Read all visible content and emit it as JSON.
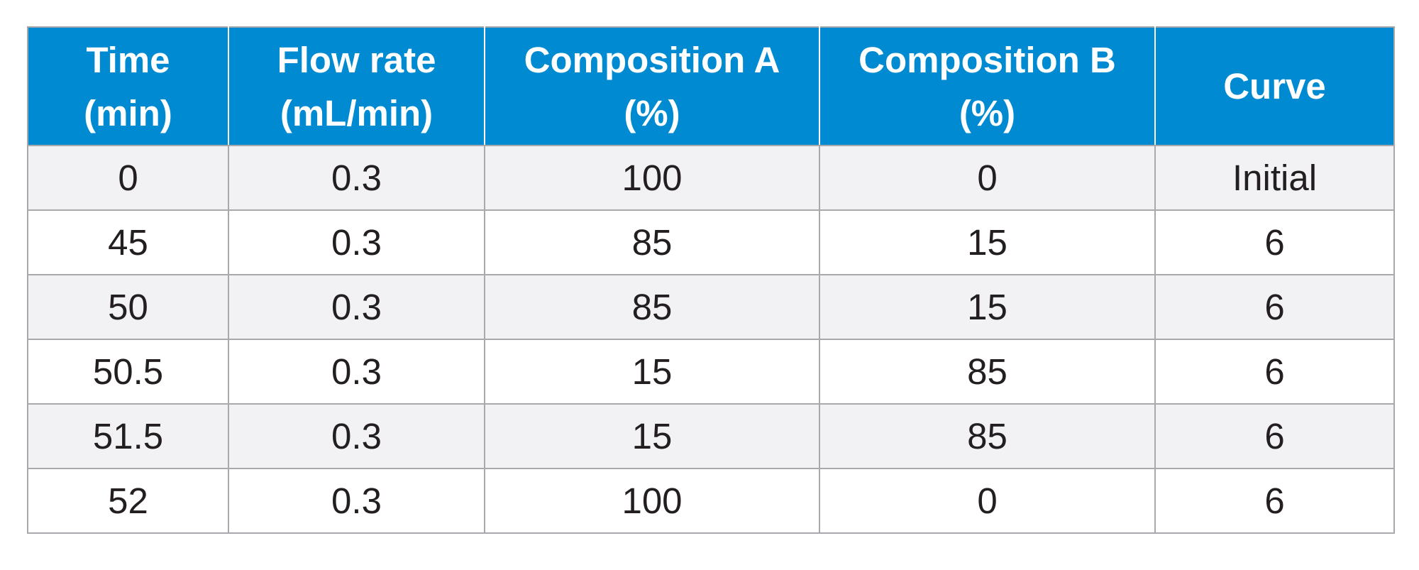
{
  "table": {
    "headers": [
      [
        "Time",
        "(min)"
      ],
      [
        "Flow rate",
        "(mL/min)"
      ],
      [
        "Composition A",
        "(%)"
      ],
      [
        "Composition B",
        "(%)"
      ],
      [
        "Curve"
      ]
    ],
    "rows": [
      [
        "0",
        "0.3",
        "100",
        "0",
        "Initial"
      ],
      [
        "45",
        "0.3",
        "85",
        "15",
        "6"
      ],
      [
        "50",
        "0.3",
        "85",
        "15",
        "6"
      ],
      [
        "50.5",
        "0.3",
        "15",
        "85",
        "6"
      ],
      [
        "51.5",
        "0.3",
        "15",
        "85",
        "6"
      ],
      [
        "52",
        "0.3",
        "100",
        "0",
        "6"
      ]
    ]
  },
  "colors": {
    "header_background": "#008ad2",
    "header_text": "#ffffff",
    "row_alt_background": "#f2f2f4",
    "row_background": "#ffffff",
    "border": "#a7a9ac",
    "body_text": "#231f20"
  }
}
